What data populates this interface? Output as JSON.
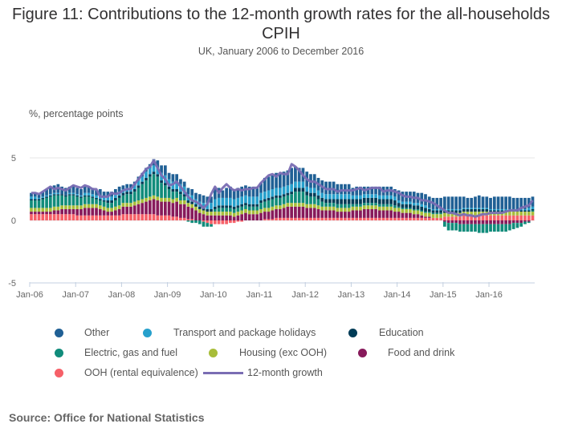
{
  "header": {
    "title": "Figure 11: Contributions to the 12-month growth rates for the all-households CPIH",
    "subtitle": "UK, January 2006 to December 2016"
  },
  "footer": {
    "source": "Source: Office for National Statistics"
  },
  "chart_data": {
    "type": "bar",
    "stacked": true,
    "title": "Figure 11: Contributions to the 12-month growth rates for the all-households CPIH",
    "subtitle": "UK, January 2006 to December 2016",
    "ylabel": "%, percentage points",
    "xlabel": "",
    "ylim": [
      -5,
      5
    ],
    "yticks": [
      5,
      0,
      -5
    ],
    "xticks": [
      "Jan-06",
      "Jan-07",
      "Jan-08",
      "Jan-09",
      "Jan-10",
      "Jan-11",
      "Jan-12",
      "Jan-13",
      "Jan-14",
      "Jan-15",
      "Jan-16"
    ],
    "grid": true,
    "legend_position": "bottom",
    "x_start": "2006-01",
    "x_end": "2016-12",
    "n_months": 132,
    "series": [
      {
        "name": "OOH (rental equivalence)",
        "color": "#f66068",
        "kind": "bar",
        "values": [
          0.5,
          0.5,
          0.5,
          0.5,
          0.5,
          0.5,
          0.5,
          0.5,
          0.5,
          0.5,
          0.5,
          0.5,
          0.4,
          0.4,
          0.4,
          0.4,
          0.4,
          0.4,
          0.4,
          0.4,
          0.4,
          0.4,
          0.4,
          0.4,
          0.5,
          0.5,
          0.5,
          0.5,
          0.5,
          0.5,
          0.5,
          0.5,
          0.5,
          0.4,
          0.4,
          0.4,
          0.4,
          0.3,
          0.3,
          0.2,
          0.2,
          0.1,
          0.1,
          0.0,
          0.0,
          -0.1,
          -0.2,
          -0.3,
          -0.3,
          -0.3,
          -0.3,
          -0.3,
          -0.2,
          -0.2,
          -0.1,
          -0.1,
          0.0,
          0.0,
          0.0,
          0.0,
          0.0,
          0.1,
          0.1,
          0.1,
          0.2,
          0.2,
          0.2,
          0.2,
          0.2,
          0.2,
          0.2,
          0.2,
          0.2,
          0.2,
          0.2,
          0.2,
          0.2,
          0.2,
          0.2,
          0.2,
          0.2,
          0.2,
          0.2,
          0.2,
          0.2,
          0.2,
          0.2,
          0.2,
          0.2,
          0.2,
          0.2,
          0.2,
          0.2,
          0.2,
          0.2,
          0.2,
          0.2,
          0.2,
          0.2,
          0.2,
          0.2,
          0.2,
          0.2,
          0.2,
          0.2,
          0.2,
          0.2,
          0.2,
          0.3,
          0.3,
          0.3,
          0.3,
          0.3,
          0.4,
          0.4,
          0.4,
          0.4,
          0.4,
          0.4,
          0.4,
          0.4,
          0.4,
          0.4,
          0.4,
          0.4,
          0.4,
          0.4,
          0.4,
          0.4,
          0.4,
          0.4,
          0.4
        ]
      },
      {
        "name": "Food and drink",
        "color": "#871a5b",
        "kind": "bar",
        "values": [
          0.2,
          0.2,
          0.2,
          0.2,
          0.2,
          0.2,
          0.3,
          0.3,
          0.4,
          0.4,
          0.4,
          0.4,
          0.5,
          0.5,
          0.6,
          0.6,
          0.6,
          0.6,
          0.5,
          0.4,
          0.3,
          0.3,
          0.4,
          0.5,
          0.6,
          0.6,
          0.6,
          0.7,
          0.8,
          0.9,
          1.0,
          1.1,
          1.2,
          1.2,
          1.1,
          1.1,
          1.1,
          1.1,
          1.2,
          1.1,
          1.1,
          1.0,
          0.9,
          0.8,
          0.6,
          0.5,
          0.4,
          0.4,
          0.4,
          0.4,
          0.4,
          0.4,
          0.4,
          0.3,
          0.4,
          0.5,
          0.6,
          0.5,
          0.5,
          0.5,
          0.6,
          0.6,
          0.6,
          0.7,
          0.7,
          0.7,
          0.8,
          0.9,
          0.9,
          0.9,
          0.9,
          0.9,
          0.8,
          0.8,
          0.8,
          0.7,
          0.6,
          0.6,
          0.6,
          0.6,
          0.5,
          0.5,
          0.5,
          0.5,
          0.6,
          0.6,
          0.6,
          0.7,
          0.7,
          0.7,
          0.7,
          0.6,
          0.6,
          0.6,
          0.6,
          0.5,
          0.5,
          0.4,
          0.4,
          0.4,
          0.3,
          0.3,
          0.2,
          0.1,
          0.1,
          0.0,
          0.0,
          0.0,
          -0.1,
          -0.2,
          -0.2,
          -0.2,
          -0.3,
          -0.3,
          -0.3,
          -0.3,
          -0.3,
          -0.3,
          -0.3,
          -0.3,
          -0.3,
          -0.3,
          -0.3,
          -0.3,
          -0.3,
          -0.3,
          -0.2,
          -0.2,
          -0.2,
          -0.1,
          -0.1,
          0.0
        ]
      },
      {
        "name": "Housing (exc OOH)",
        "color": "#a8bd3a",
        "kind": "bar",
        "values": [
          0.3,
          0.3,
          0.3,
          0.3,
          0.3,
          0.3,
          0.3,
          0.3,
          0.3,
          0.3,
          0.3,
          0.3,
          0.3,
          0.3,
          0.3,
          0.3,
          0.3,
          0.3,
          0.3,
          0.3,
          0.3,
          0.3,
          0.3,
          0.3,
          0.3,
          0.3,
          0.3,
          0.3,
          0.3,
          0.3,
          0.3,
          0.3,
          0.3,
          0.3,
          0.3,
          0.3,
          0.3,
          0.3,
          0.3,
          0.3,
          0.3,
          0.3,
          0.3,
          0.3,
          0.3,
          0.3,
          0.3,
          0.3,
          0.3,
          0.3,
          0.3,
          0.3,
          0.3,
          0.3,
          0.3,
          0.3,
          0.3,
          0.3,
          0.3,
          0.3,
          0.3,
          0.3,
          0.3,
          0.3,
          0.3,
          0.3,
          0.3,
          0.3,
          0.3,
          0.3,
          0.3,
          0.3,
          0.3,
          0.3,
          0.3,
          0.3,
          0.3,
          0.3,
          0.3,
          0.3,
          0.3,
          0.3,
          0.3,
          0.3,
          0.3,
          0.3,
          0.3,
          0.3,
          0.3,
          0.3,
          0.3,
          0.3,
          0.3,
          0.3,
          0.3,
          0.3,
          0.3,
          0.3,
          0.3,
          0.3,
          0.3,
          0.3,
          0.3,
          0.3,
          0.3,
          0.3,
          0.3,
          0.3,
          0.3,
          0.3,
          0.3,
          0.3,
          0.3,
          0.3,
          0.3,
          0.3,
          0.3,
          0.3,
          0.3,
          0.3,
          0.3,
          0.3,
          0.3,
          0.3,
          0.3,
          0.3,
          0.3,
          0.3,
          0.3,
          0.3,
          0.3,
          0.3
        ]
      },
      {
        "name": "Electric, gas and fuel",
        "color": "#118c7b",
        "kind": "bar",
        "values": [
          0.6,
          0.6,
          0.6,
          0.7,
          0.8,
          0.9,
          0.9,
          0.9,
          0.8,
          0.7,
          0.8,
          0.8,
          0.7,
          0.6,
          0.6,
          0.6,
          0.5,
          0.4,
          0.4,
          0.4,
          0.4,
          0.4,
          0.5,
          0.6,
          0.6,
          0.7,
          0.7,
          0.8,
          1.0,
          1.2,
          1.4,
          1.6,
          1.7,
          1.6,
          1.2,
          1.0,
          0.7,
          0.6,
          0.5,
          0.5,
          0.3,
          -0.1,
          -0.2,
          -0.2,
          -0.3,
          -0.4,
          -0.3,
          -0.2,
          0.2,
          0.3,
          0.3,
          0.3,
          0.3,
          0.3,
          0.3,
          0.3,
          0.3,
          0.3,
          0.3,
          0.3,
          0.5,
          0.5,
          0.6,
          0.6,
          0.6,
          0.6,
          0.6,
          0.6,
          0.7,
          0.9,
          0.9,
          0.9,
          0.7,
          0.6,
          0.6,
          0.5,
          0.4,
          0.3,
          0.3,
          0.3,
          0.3,
          0.3,
          0.3,
          0.3,
          0.2,
          0.2,
          0.2,
          0.2,
          0.2,
          0.2,
          0.2,
          0.2,
          0.2,
          0.2,
          0.2,
          0.2,
          0.1,
          0.1,
          0.1,
          0.1,
          0.1,
          0.1,
          0.1,
          0.1,
          0.1,
          0.1,
          0.1,
          0.1,
          -0.4,
          -0.6,
          -0.6,
          -0.6,
          -0.6,
          -0.6,
          -0.6,
          -0.6,
          -0.6,
          -0.7,
          -0.7,
          -0.7,
          -0.6,
          -0.6,
          -0.6,
          -0.6,
          -0.6,
          -0.5,
          -0.5,
          -0.4,
          -0.3,
          -0.2,
          -0.1,
          0.1
        ]
      },
      {
        "name": "Education",
        "color": "#003c57",
        "kind": "bar",
        "values": [
          0.1,
          0.1,
          0.1,
          0.1,
          0.1,
          0.1,
          0.1,
          0.1,
          0.1,
          0.1,
          0.1,
          0.1,
          0.1,
          0.1,
          0.1,
          0.1,
          0.1,
          0.1,
          0.1,
          0.1,
          0.2,
          0.2,
          0.2,
          0.2,
          0.2,
          0.2,
          0.2,
          0.2,
          0.2,
          0.2,
          0.2,
          0.2,
          0.2,
          0.2,
          0.2,
          0.2,
          0.2,
          0.2,
          0.2,
          0.2,
          0.2,
          0.2,
          0.2,
          0.2,
          0.2,
          0.2,
          0.2,
          0.2,
          0.2,
          0.2,
          0.2,
          0.2,
          0.2,
          0.2,
          0.2,
          0.2,
          0.2,
          0.2,
          0.2,
          0.2,
          0.2,
          0.2,
          0.2,
          0.2,
          0.2,
          0.2,
          0.2,
          0.2,
          0.2,
          0.3,
          0.3,
          0.3,
          0.3,
          0.3,
          0.3,
          0.3,
          0.3,
          0.3,
          0.3,
          0.3,
          0.4,
          0.4,
          0.4,
          0.4,
          0.4,
          0.4,
          0.4,
          0.4,
          0.4,
          0.4,
          0.4,
          0.4,
          0.4,
          0.4,
          0.4,
          0.4,
          0.3,
          0.3,
          0.3,
          0.3,
          0.3,
          0.3,
          0.3,
          0.3,
          0.2,
          0.2,
          0.2,
          0.2,
          0.2,
          0.2,
          0.2,
          0.2,
          0.2,
          0.2,
          0.2,
          0.2,
          0.2,
          0.2,
          0.2,
          0.2,
          0.1,
          0.1,
          0.1,
          0.1,
          0.1,
          0.1,
          0.1,
          0.1,
          0.1,
          0.1,
          0.1,
          0.1
        ]
      },
      {
        "name": "Transport and package holidays",
        "color": "#27a0cc",
        "kind": "bar",
        "values": [
          0.2,
          0.2,
          0.1,
          0.1,
          0.1,
          0.1,
          0.1,
          0.1,
          0.0,
          0.0,
          0.1,
          0.1,
          0.1,
          0.1,
          0.2,
          0.2,
          0.2,
          0.2,
          0.3,
          0.3,
          0.3,
          0.3,
          0.3,
          0.3,
          0.3,
          0.3,
          0.3,
          0.3,
          0.4,
          0.4,
          0.5,
          0.5,
          0.5,
          0.5,
          0.6,
          0.6,
          0.6,
          0.6,
          0.6,
          0.6,
          0.6,
          0.5,
          0.5,
          0.4,
          0.4,
          0.4,
          0.5,
          0.5,
          0.6,
          0.6,
          0.6,
          0.6,
          0.6,
          0.6,
          0.6,
          0.6,
          0.6,
          0.6,
          0.6,
          0.6,
          0.6,
          0.6,
          0.6,
          0.6,
          0.6,
          0.6,
          0.6,
          0.6,
          0.6,
          0.5,
          0.5,
          0.5,
          0.4,
          0.4,
          0.4,
          0.4,
          0.4,
          0.4,
          0.4,
          0.4,
          0.4,
          0.4,
          0.4,
          0.4,
          0.3,
          0.3,
          0.3,
          0.3,
          0.3,
          0.3,
          0.3,
          0.3,
          0.3,
          0.3,
          0.3,
          0.3,
          0.2,
          0.2,
          0.2,
          0.2,
          0.2,
          0.2,
          0.2,
          0.2,
          0.1,
          0.1,
          0.1,
          0.1,
          0.1,
          0.1,
          0.1,
          0.1,
          0.1,
          0.1,
          0.1,
          0.1,
          0.1,
          0.1,
          0.1,
          0.1,
          0.1,
          0.1,
          0.1,
          0.1,
          0.1,
          0.1,
          0.1,
          0.1,
          0.1,
          0.1,
          0.2,
          0.2
        ]
      },
      {
        "name": "Other",
        "color": "#206095",
        "kind": "bar",
        "values": [
          0.3,
          0.3,
          0.3,
          0.4,
          0.5,
          0.6,
          0.6,
          0.7,
          0.6,
          0.6,
          0.5,
          0.6,
          0.5,
          0.5,
          0.5,
          0.5,
          0.5,
          0.4,
          0.5,
          0.4,
          0.4,
          0.4,
          0.4,
          0.4,
          0.3,
          0.3,
          0.3,
          0.3,
          0.3,
          0.3,
          0.3,
          0.3,
          0.5,
          0.6,
          0.6,
          0.8,
          0.5,
          0.6,
          0.6,
          0.4,
          0.4,
          0.5,
          0.5,
          0.5,
          0.6,
          0.6,
          0.5,
          0.5,
          0.9,
          0.8,
          0.6,
          0.8,
          0.9,
          0.8,
          0.8,
          0.8,
          0.8,
          0.8,
          0.8,
          0.8,
          0.8,
          1.1,
          1.1,
          1.1,
          1.2,
          1.1,
          1.2,
          1.2,
          1.3,
          1.2,
          1.1,
          1.1,
          1.2,
          1.1,
          1.1,
          1.0,
          1.0,
          1.0,
          1.0,
          1.0,
          0.8,
          0.8,
          0.8,
          0.8,
          0.6,
          0.7,
          0.7,
          0.6,
          0.6,
          0.6,
          0.6,
          0.7,
          0.7,
          0.7,
          0.7,
          0.6,
          0.8,
          0.8,
          0.8,
          0.8,
          0.9,
          0.8,
          0.9,
          0.9,
          0.9,
          0.9,
          0.9,
          0.9,
          1.0,
          1.0,
          1.0,
          1.0,
          1.0,
          0.9,
          0.8,
          0.8,
          0.9,
          1.0,
          0.9,
          0.9,
          0.9,
          1.0,
          1.0,
          1.0,
          1.0,
          1.0,
          0.9,
          0.9,
          0.9,
          0.9,
          0.8,
          0.8
        ]
      },
      {
        "name": "12-month growth",
        "color": "#7a6db3",
        "kind": "line",
        "values": [
          2.2,
          2.2,
          2.1,
          2.3,
          2.5,
          2.7,
          2.5,
          2.6,
          2.5,
          2.4,
          2.6,
          2.8,
          2.7,
          2.6,
          2.8,
          2.7,
          2.5,
          2.5,
          1.9,
          1.9,
          1.9,
          2.2,
          2.1,
          2.2,
          2.4,
          2.5,
          2.5,
          2.9,
          3.3,
          3.7,
          4.1,
          4.3,
          4.8,
          4.2,
          3.6,
          3.3,
          2.8,
          2.9,
          3.1,
          2.7,
          2.3,
          1.9,
          1.6,
          1.5,
          1.3,
          1.0,
          1.3,
          2.1,
          2.7,
          2.2,
          2.6,
          2.9,
          2.6,
          2.4,
          2.5,
          2.4,
          2.5,
          2.5,
          2.6,
          2.6,
          3.0,
          3.3,
          3.6,
          3.7,
          3.5,
          3.8,
          3.7,
          3.7,
          4.5,
          4.3,
          4.0,
          3.6,
          3.3,
          3.1,
          3.1,
          2.9,
          2.7,
          2.5,
          2.5,
          2.5,
          2.3,
          2.4,
          2.4,
          2.4,
          2.4,
          2.5,
          2.6,
          2.4,
          2.5,
          2.6,
          2.6,
          2.6,
          2.3,
          2.4,
          2.4,
          2.3,
          2.2,
          2.0,
          1.9,
          1.9,
          1.8,
          1.8,
          1.6,
          1.6,
          1.5,
          1.4,
          1.2,
          1.0,
          0.8,
          0.6,
          0.6,
          0.5,
          0.4,
          0.5,
          0.4,
          0.4,
          0.3,
          0.4,
          0.5,
          0.5,
          0.6,
          0.6,
          0.6,
          0.6,
          0.7,
          0.8,
          0.8,
          0.8,
          1.0,
          1.1,
          1.2,
          1.6
        ]
      }
    ]
  },
  "legend": {
    "items": [
      {
        "label": "Other",
        "color": "#206095",
        "kind": "dot"
      },
      {
        "label": "Transport and package holidays",
        "color": "#27a0cc",
        "kind": "dot"
      },
      {
        "label": "Education",
        "color": "#003c57",
        "kind": "dot"
      },
      {
        "label": "Electric, gas and fuel",
        "color": "#118c7b",
        "kind": "dot"
      },
      {
        "label": "Housing (exc OOH)",
        "color": "#a8bd3a",
        "kind": "dot"
      },
      {
        "label": "Food and drink",
        "color": "#871a5b",
        "kind": "dot"
      },
      {
        "label": "OOH (rental equivalence)",
        "color": "#f66068",
        "kind": "dot"
      },
      {
        "label": "12-month growth",
        "color": "#7a6db3",
        "kind": "line"
      }
    ]
  }
}
